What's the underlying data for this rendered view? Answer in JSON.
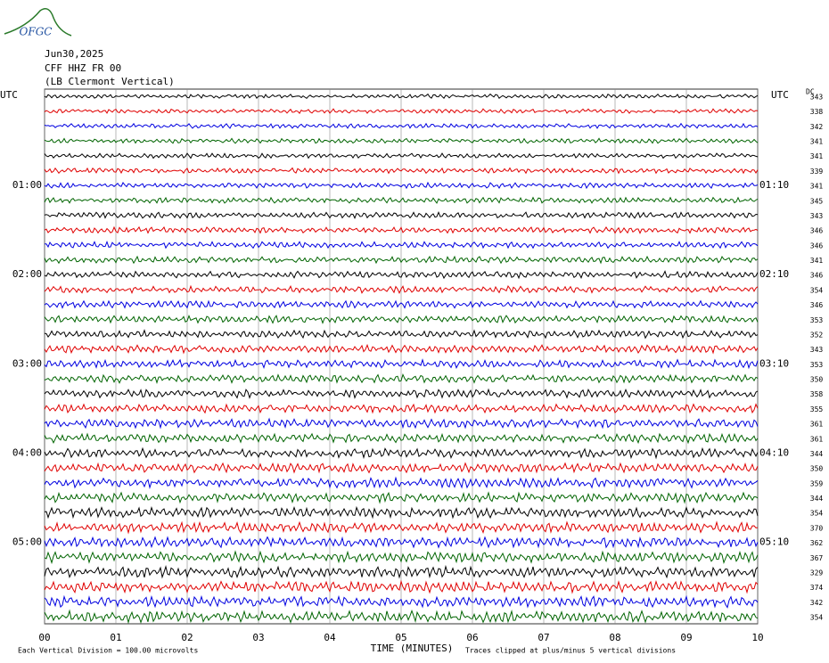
{
  "header": {
    "logo": "OFGC",
    "date": "Jun30,2025",
    "station": "CFF HHZ FR 00",
    "location": "(LB  Clermont Vertical)"
  },
  "left_label": "UTC",
  "right_label": "UTC",
  "dc_label": "DC",
  "left_times": [
    "01:00",
    "02:00",
    "03:00",
    "04:00",
    "05:00"
  ],
  "right_times": [
    "01:10",
    "02:10",
    "03:10",
    "04:10",
    "05:10"
  ],
  "dc_values": [
    "343",
    "338",
    "342",
    "341",
    "341",
    "339",
    "341",
    "345",
    "343",
    "346",
    "346",
    "341",
    "346",
    "354",
    "346",
    "353",
    "352",
    "343",
    "353",
    "350",
    "358",
    "355",
    "361",
    "361",
    "344",
    "350",
    "359",
    "344",
    "354",
    "370",
    "362",
    "367",
    "329",
    "374",
    "342",
    "354"
  ],
  "x_ticks": [
    "00",
    "01",
    "02",
    "03",
    "04",
    "05",
    "06",
    "07",
    "08",
    "09",
    "10"
  ],
  "x_title": "TIME (MINUTES)",
  "footer_left": "Each Vertical Division =  100.00 microvolts",
  "footer_right": "Traces clipped at plus/minus 5 vertical divisions"
}
